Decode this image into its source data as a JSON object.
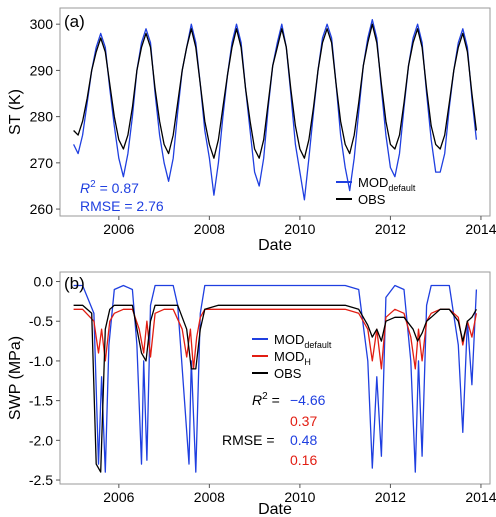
{
  "chart_data": [
    {
      "type": "line",
      "panel_label": "(a)",
      "xlabel": "Date",
      "ylabel": "ST (K)",
      "xlim": [
        2004.7,
        2014.2
      ],
      "ylim": [
        258.5,
        303.5
      ],
      "xticks": [
        2006,
        2008,
        2010,
        2012,
        2014
      ],
      "yticks": [
        260,
        270,
        280,
        290,
        300
      ],
      "legend_position": "bottom-right",
      "series": [
        {
          "name": "MOD",
          "name_sub": "default",
          "color": "#1f3fe0",
          "x": [
            2005.0,
            2005.1,
            2005.2,
            2005.3,
            2005.4,
            2005.5,
            2005.6,
            2005.7,
            2005.8,
            2005.9,
            2006.0,
            2006.1,
            2006.2,
            2006.3,
            2006.4,
            2006.5,
            2006.6,
            2006.7,
            2006.8,
            2006.9,
            2007.0,
            2007.1,
            2007.2,
            2007.3,
            2007.4,
            2007.5,
            2007.6,
            2007.7,
            2007.8,
            2007.9,
            2008.0,
            2008.1,
            2008.2,
            2008.3,
            2008.4,
            2008.5,
            2008.6,
            2008.7,
            2008.8,
            2008.9,
            2009.0,
            2009.1,
            2009.2,
            2009.3,
            2009.4,
            2009.5,
            2009.6,
            2009.7,
            2009.8,
            2009.9,
            2010.0,
            2010.1,
            2010.2,
            2010.3,
            2010.4,
            2010.5,
            2010.6,
            2010.7,
            2010.8,
            2010.9,
            2011.0,
            2011.1,
            2011.2,
            2011.3,
            2011.4,
            2011.5,
            2011.6,
            2011.7,
            2011.8,
            2011.9,
            2012.0,
            2012.1,
            2012.2,
            2012.3,
            2012.4,
            2012.5,
            2012.6,
            2012.7,
            2012.8,
            2012.9,
            2013.0,
            2013.1,
            2013.2,
            2013.3,
            2013.4,
            2013.5,
            2013.6,
            2013.7,
            2013.8,
            2013.9
          ],
          "y": [
            274,
            272,
            276,
            283,
            290,
            295,
            298,
            295,
            286,
            278,
            271,
            267,
            272,
            280,
            290,
            296,
            299,
            296,
            285,
            276,
            270,
            266,
            271,
            281,
            290,
            295,
            300,
            296,
            287,
            277,
            271,
            263,
            270,
            280,
            289,
            296,
            300,
            296,
            286,
            277,
            268,
            265,
            271,
            282,
            291,
            296,
            300,
            295,
            285,
            274,
            268,
            262,
            271,
            281,
            290,
            297,
            300,
            297,
            287,
            276,
            269,
            264,
            271,
            281,
            291,
            297,
            301,
            297,
            286,
            276,
            269,
            267,
            272,
            282,
            291,
            297,
            300,
            296,
            285,
            275,
            268,
            268,
            272,
            282,
            290,
            296,
            299,
            295,
            284,
            275
          ]
        },
        {
          "name": "OBS",
          "color": "#000000",
          "x": [
            2005.0,
            2005.1,
            2005.2,
            2005.3,
            2005.4,
            2005.5,
            2005.6,
            2005.7,
            2005.8,
            2005.9,
            2006.0,
            2006.1,
            2006.2,
            2006.3,
            2006.4,
            2006.5,
            2006.6,
            2006.7,
            2006.8,
            2006.9,
            2007.0,
            2007.1,
            2007.2,
            2007.3,
            2007.4,
            2007.5,
            2007.6,
            2007.7,
            2007.8,
            2007.9,
            2008.0,
            2008.1,
            2008.2,
            2008.3,
            2008.4,
            2008.5,
            2008.6,
            2008.7,
            2008.8,
            2008.9,
            2009.0,
            2009.1,
            2009.2,
            2009.3,
            2009.4,
            2009.5,
            2009.6,
            2009.7,
            2009.8,
            2009.9,
            2010.0,
            2010.1,
            2010.2,
            2010.3,
            2010.4,
            2010.5,
            2010.6,
            2010.7,
            2010.8,
            2010.9,
            2011.0,
            2011.1,
            2011.2,
            2011.3,
            2011.4,
            2011.5,
            2011.6,
            2011.7,
            2011.8,
            2011.9,
            2012.0,
            2012.1,
            2012.2,
            2012.3,
            2012.4,
            2012.5,
            2012.6,
            2012.7,
            2012.8,
            2012.9,
            2013.0,
            2013.1,
            2013.2,
            2013.3,
            2013.4,
            2013.5,
            2013.6,
            2013.7,
            2013.8,
            2013.9
          ],
          "y": [
            277,
            276,
            279,
            284,
            290,
            294,
            297,
            294,
            287,
            280,
            275,
            273,
            276,
            282,
            290,
            295,
            298,
            295,
            286,
            279,
            274,
            272,
            276,
            283,
            290,
            295,
            299,
            295,
            287,
            279,
            274,
            271,
            275,
            282,
            289,
            295,
            299,
            295,
            286,
            279,
            273,
            271,
            275,
            283,
            291,
            295,
            299,
            295,
            286,
            278,
            273,
            271,
            275,
            282,
            290,
            296,
            299,
            296,
            287,
            279,
            274,
            272,
            276,
            283,
            291,
            296,
            300,
            296,
            287,
            279,
            274,
            273,
            276,
            283,
            291,
            296,
            299,
            295,
            286,
            278,
            274,
            273,
            276,
            283,
            290,
            295,
            298,
            294,
            285,
            277
          ]
        }
      ],
      "annotation": {
        "r2_label": "R",
        "r2_sup": "2",
        "r2_text": " = 0.87",
        "rmse_text": "RMSE = 2.76",
        "color": "#1f3fe0"
      }
    },
    {
      "type": "line",
      "panel_label": "(b)",
      "xlabel": "Date",
      "ylabel": "SWP (MPa)",
      "xlim": [
        2004.7,
        2014.2
      ],
      "ylim": [
        -2.55,
        0.12
      ],
      "xticks": [
        2006,
        2008,
        2010,
        2012,
        2014
      ],
      "yticks": [
        0.0,
        -0.5,
        -1.0,
        -1.5,
        -2.0,
        -2.5
      ],
      "ytick_labels": [
        "0.0",
        "-0.5",
        "-1.0",
        "-1.5",
        "-2.0",
        "-2.5"
      ],
      "legend_position": "center",
      "series": [
        {
          "name": "MOD",
          "name_sub": "default",
          "color": "#1f3fe0",
          "x": [
            2005.0,
            2005.2,
            2005.45,
            2005.55,
            2005.62,
            2005.7,
            2005.78,
            2005.9,
            2006.1,
            2006.3,
            2006.4,
            2006.5,
            2006.55,
            2006.62,
            2006.7,
            2006.8,
            2007.0,
            2007.2,
            2007.3,
            2007.45,
            2007.55,
            2007.6,
            2007.7,
            2007.8,
            2007.9,
            2008.1,
            2008.5,
            2009.0,
            2009.5,
            2010.0,
            2010.5,
            2011.0,
            2011.3,
            2011.5,
            2011.6,
            2011.7,
            2011.8,
            2011.9,
            2012.1,
            2012.3,
            2012.45,
            2012.55,
            2012.62,
            2012.7,
            2012.8,
            2012.9,
            2013.1,
            2013.3,
            2013.5,
            2013.6,
            2013.7,
            2013.8,
            2013.9
          ],
          "y": [
            -0.05,
            -0.05,
            -0.4,
            -2.3,
            -1.2,
            -2.4,
            -0.8,
            -0.1,
            -0.05,
            -0.1,
            -0.8,
            -2.3,
            -1.0,
            -2.25,
            -0.3,
            -0.05,
            -0.05,
            -0.05,
            -0.3,
            -1.5,
            -2.3,
            -1.0,
            -2.4,
            -0.4,
            -0.05,
            -0.05,
            -0.05,
            -0.05,
            -0.05,
            -0.05,
            -0.05,
            -0.05,
            -0.1,
            -1.0,
            -2.35,
            -1.2,
            -2.2,
            -0.2,
            -0.05,
            -0.1,
            -1.0,
            -2.4,
            -1.0,
            -2.2,
            -0.3,
            -0.05,
            -0.05,
            -0.05,
            -0.8,
            -1.9,
            -0.5,
            -1.3,
            -0.1
          ]
        },
        {
          "name": "MOD",
          "name_sub": "H",
          "color": "#e21d12",
          "x": [
            2005.0,
            2005.2,
            2005.45,
            2005.55,
            2005.62,
            2005.7,
            2005.8,
            2005.9,
            2006.1,
            2006.3,
            2006.45,
            2006.55,
            2006.62,
            2006.7,
            2006.8,
            2007.0,
            2007.2,
            2007.4,
            2007.5,
            2007.58,
            2007.65,
            2007.72,
            2007.8,
            2007.9,
            2008.2,
            2008.6,
            2009.0,
            2009.5,
            2010.0,
            2010.5,
            2011.0,
            2011.3,
            2011.5,
            2011.6,
            2011.7,
            2011.8,
            2011.9,
            2012.1,
            2012.3,
            2012.45,
            2012.55,
            2012.62,
            2012.7,
            2012.8,
            2012.9,
            2013.1,
            2013.3,
            2013.5,
            2013.6,
            2013.7,
            2013.8,
            2013.9
          ],
          "y": [
            -0.35,
            -0.35,
            -0.5,
            -0.9,
            -0.6,
            -1.0,
            -0.5,
            -0.4,
            -0.35,
            -0.35,
            -0.6,
            -0.9,
            -0.5,
            -0.95,
            -0.4,
            -0.35,
            -0.35,
            -0.6,
            -0.95,
            -0.6,
            -1.1,
            -0.7,
            -0.45,
            -0.35,
            -0.35,
            -0.35,
            -0.35,
            -0.35,
            -0.35,
            -0.35,
            -0.35,
            -0.4,
            -0.6,
            -1.0,
            -0.6,
            -1.1,
            -0.45,
            -0.35,
            -0.4,
            -0.7,
            -1.1,
            -0.6,
            -1.0,
            -0.5,
            -0.4,
            -0.35,
            -0.35,
            -0.45,
            -0.8,
            -0.5,
            -0.7,
            -0.4
          ]
        },
        {
          "name": "OBS",
          "color": "#000000",
          "x": [
            2005.0,
            2005.2,
            2005.4,
            2005.5,
            2005.6,
            2005.7,
            2005.8,
            2005.9,
            2006.1,
            2006.3,
            2006.5,
            2006.6,
            2006.7,
            2006.8,
            2007.0,
            2007.3,
            2007.5,
            2007.6,
            2007.7,
            2007.8,
            2007.9,
            2008.2,
            2008.6,
            2009.0,
            2009.5,
            2010.0,
            2010.5,
            2011.0,
            2011.3,
            2011.5,
            2011.6,
            2011.7,
            2011.8,
            2011.9,
            2012.1,
            2012.3,
            2012.5,
            2012.6,
            2012.7,
            2012.8,
            2012.9,
            2013.1,
            2013.3,
            2013.5,
            2013.6,
            2013.7,
            2013.8,
            2013.9
          ],
          "y": [
            -0.3,
            -0.3,
            -0.4,
            -2.3,
            -2.4,
            -0.6,
            -0.35,
            -0.3,
            -0.3,
            -0.3,
            -0.9,
            -1.0,
            -0.5,
            -0.3,
            -0.3,
            -0.3,
            -0.6,
            -1.1,
            -1.1,
            -0.6,
            -0.35,
            -0.3,
            -0.3,
            -0.3,
            -0.3,
            -0.3,
            -0.3,
            -0.3,
            -0.35,
            -0.55,
            -0.7,
            -0.6,
            -0.75,
            -0.5,
            -0.45,
            -0.45,
            -0.6,
            -0.75,
            -0.65,
            -0.5,
            -0.45,
            -0.35,
            -0.35,
            -0.5,
            -0.75,
            -0.5,
            -0.45,
            -0.35
          ]
        }
      ],
      "annotation": {
        "r2_label": "R",
        "r2_sup": "2",
        "r2_eq": " = ",
        "rmse_label": "RMSE = ",
        "label_color": "#000000",
        "values": [
          {
            "text": "−4.66",
            "color": "#1f3fe0"
          },
          {
            "text": "0.37",
            "color": "#e21d12"
          },
          {
            "text": "0.48",
            "color": "#1f3fe0"
          },
          {
            "text": "0.16",
            "color": "#e21d12"
          }
        ]
      }
    }
  ]
}
